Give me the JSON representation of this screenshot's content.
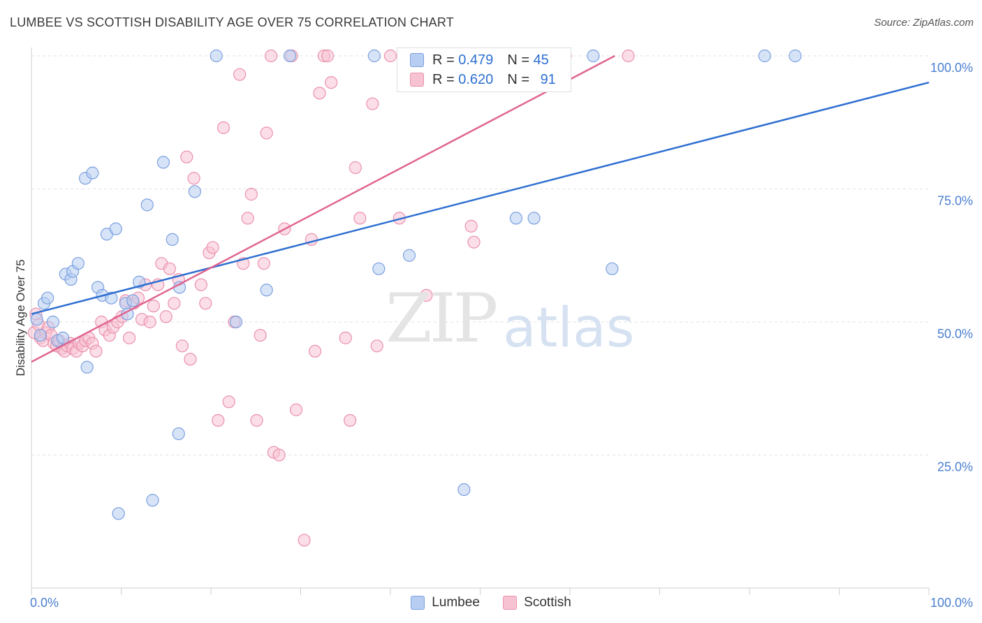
{
  "header": {
    "title": "LUMBEE VS SCOTTISH DISABILITY AGE OVER 75 CORRELATION CHART",
    "source": "Source: ZipAtlas.com"
  },
  "watermark": {
    "zip": "ZIP",
    "atlas": "atlas"
  },
  "colors": {
    "lumbee_fill": "#b7cdf2",
    "lumbee_stroke": "#7ba0de",
    "lumbee_line": "#2e6fd1",
    "scottish_fill": "#f7c3d3",
    "scottish_stroke": "#ea91ad",
    "scottish_line": "#e0648f",
    "tick_label": "#4a7fd1",
    "grid": "#e2e2e2"
  },
  "stats": {
    "lumbee": {
      "r_label": "R = ",
      "r": "0.479",
      "n_label": "N = ",
      "n": "45"
    },
    "scottish": {
      "r_label": "R = ",
      "r": "0.620",
      "n_label": "N = ",
      "n": "91"
    }
  },
  "legend": {
    "lumbee": "Lumbee",
    "scottish": "Scottish"
  },
  "chart_data": {
    "type": "scatter",
    "title": "LUMBEE VS SCOTTISH DISABILITY AGE OVER 75 CORRELATION CHART",
    "xlabel": "",
    "ylabel": "Disability Age Over 75",
    "xlim": [
      0,
      100
    ],
    "ylim": [
      0,
      100
    ],
    "x_tick_labels": [
      "0.0%",
      "100.0%"
    ],
    "y_ticks": [
      25,
      50,
      75,
      100
    ],
    "y_tick_labels": [
      "25.0%",
      "50.0%",
      "75.0%",
      "100.0%"
    ],
    "grid": true,
    "legend_position": "bottom",
    "series": [
      {
        "name": "Lumbee",
        "r": 0.479,
        "n": 45,
        "trend": {
          "x": [
            0,
            100
          ],
          "y": [
            51.5,
            95.0
          ]
        },
        "points": [
          [
            0.6,
            50.5
          ],
          [
            1.0,
            47.5
          ],
          [
            1.4,
            53.5
          ],
          [
            1.8,
            54.5
          ],
          [
            2.4,
            50.0
          ],
          [
            2.9,
            46.5
          ],
          [
            3.5,
            47.0
          ],
          [
            3.8,
            59.0
          ],
          [
            4.4,
            58.0
          ],
          [
            4.6,
            59.5
          ],
          [
            5.2,
            61.0
          ],
          [
            6.0,
            77.0
          ],
          [
            6.2,
            41.5
          ],
          [
            6.8,
            78.0
          ],
          [
            7.4,
            56.5
          ],
          [
            7.9,
            55.0
          ],
          [
            8.4,
            66.5
          ],
          [
            8.9,
            54.5
          ],
          [
            9.4,
            67.5
          ],
          [
            9.7,
            14.0
          ],
          [
            10.5,
            53.5
          ],
          [
            10.7,
            51.5
          ],
          [
            11.3,
            54.0
          ],
          [
            12.0,
            57.5
          ],
          [
            12.9,
            72.0
          ],
          [
            13.5,
            16.5
          ],
          [
            14.7,
            80.0
          ],
          [
            15.7,
            65.5
          ],
          [
            16.5,
            56.5
          ],
          [
            16.4,
            29.0
          ],
          [
            18.2,
            74.5
          ],
          [
            20.6,
            100.0
          ],
          [
            22.8,
            50.0
          ],
          [
            26.2,
            56.0
          ],
          [
            28.8,
            100.0
          ],
          [
            38.2,
            100.0
          ],
          [
            38.7,
            60.0
          ],
          [
            42.1,
            62.5
          ],
          [
            48.2,
            18.5
          ],
          [
            54.0,
            69.5
          ],
          [
            56.0,
            69.5
          ],
          [
            62.6,
            100.0
          ],
          [
            64.7,
            60.0
          ],
          [
            81.7,
            100.0
          ],
          [
            85.1,
            100.0
          ]
        ]
      },
      {
        "name": "Scottish",
        "r": 0.62,
        "n": 91,
        "trend": {
          "x": [
            0,
            65.0
          ],
          "y": [
            42.5,
            100.0
          ]
        },
        "points": [
          [
            0.3,
            48.0
          ],
          [
            0.5,
            51.5
          ],
          [
            0.8,
            49.5
          ],
          [
            1.0,
            47.0
          ],
          [
            1.3,
            46.5
          ],
          [
            1.6,
            48.0
          ],
          [
            1.9,
            49.0
          ],
          [
            2.2,
            47.5
          ],
          [
            2.5,
            46.0
          ],
          [
            2.8,
            45.5
          ],
          [
            3.1,
            46.5
          ],
          [
            3.4,
            45.0
          ],
          [
            3.7,
            44.5
          ],
          [
            4.0,
            45.5
          ],
          [
            4.3,
            46.0
          ],
          [
            4.6,
            45.0
          ],
          [
            5.0,
            44.5
          ],
          [
            5.3,
            46.0
          ],
          [
            5.7,
            45.5
          ],
          [
            6.0,
            46.5
          ],
          [
            6.4,
            47.0
          ],
          [
            6.8,
            46.0
          ],
          [
            7.2,
            44.5
          ],
          [
            7.8,
            50.0
          ],
          [
            8.2,
            48.5
          ],
          [
            8.7,
            47.5
          ],
          [
            9.1,
            49.0
          ],
          [
            9.6,
            50.0
          ],
          [
            10.1,
            51.0
          ],
          [
            10.5,
            54.0
          ],
          [
            10.9,
            47.0
          ],
          [
            11.4,
            53.5
          ],
          [
            11.9,
            54.5
          ],
          [
            12.3,
            50.5
          ],
          [
            12.7,
            57.0
          ],
          [
            13.2,
            50.0
          ],
          [
            13.6,
            53.0
          ],
          [
            14.1,
            57.0
          ],
          [
            14.5,
            61.0
          ],
          [
            15.0,
            51.0
          ],
          [
            15.4,
            60.0
          ],
          [
            15.9,
            53.5
          ],
          [
            16.4,
            58.0
          ],
          [
            16.8,
            45.5
          ],
          [
            17.3,
            81.0
          ],
          [
            17.7,
            43.0
          ],
          [
            18.1,
            77.0
          ],
          [
            18.9,
            57.0
          ],
          [
            19.4,
            53.5
          ],
          [
            19.8,
            63.0
          ],
          [
            20.2,
            64.0
          ],
          [
            20.8,
            31.5
          ],
          [
            21.4,
            86.5
          ],
          [
            22.0,
            35.0
          ],
          [
            22.6,
            50.0
          ],
          [
            23.2,
            96.5
          ],
          [
            23.6,
            61.0
          ],
          [
            24.1,
            69.5
          ],
          [
            24.5,
            74.0
          ],
          [
            25.1,
            31.5
          ],
          [
            25.5,
            47.5
          ],
          [
            25.9,
            61.0
          ],
          [
            26.2,
            85.5
          ],
          [
            26.7,
            100.0
          ],
          [
            27.0,
            25.5
          ],
          [
            27.6,
            25.0
          ],
          [
            28.2,
            67.5
          ],
          [
            29.0,
            100.0
          ],
          [
            29.5,
            33.5
          ],
          [
            30.4,
            9.0
          ],
          [
            31.2,
            65.5
          ],
          [
            31.6,
            44.5
          ],
          [
            32.1,
            93.0
          ],
          [
            32.6,
            100.0
          ],
          [
            33.0,
            100.0
          ],
          [
            33.4,
            95.0
          ],
          [
            35.0,
            47.0
          ],
          [
            35.5,
            31.5
          ],
          [
            36.1,
            79.0
          ],
          [
            36.6,
            69.5
          ],
          [
            38.0,
            91.0
          ],
          [
            38.5,
            45.5
          ],
          [
            40.0,
            100.0
          ],
          [
            41.0,
            69.5
          ],
          [
            44.0,
            55.0
          ],
          [
            45.2,
            100.0
          ],
          [
            49.0,
            68.0
          ],
          [
            49.3,
            65.0
          ],
          [
            51.7,
            100.0
          ],
          [
            59.5,
            100.0
          ],
          [
            66.5,
            100.0
          ]
        ]
      }
    ]
  }
}
